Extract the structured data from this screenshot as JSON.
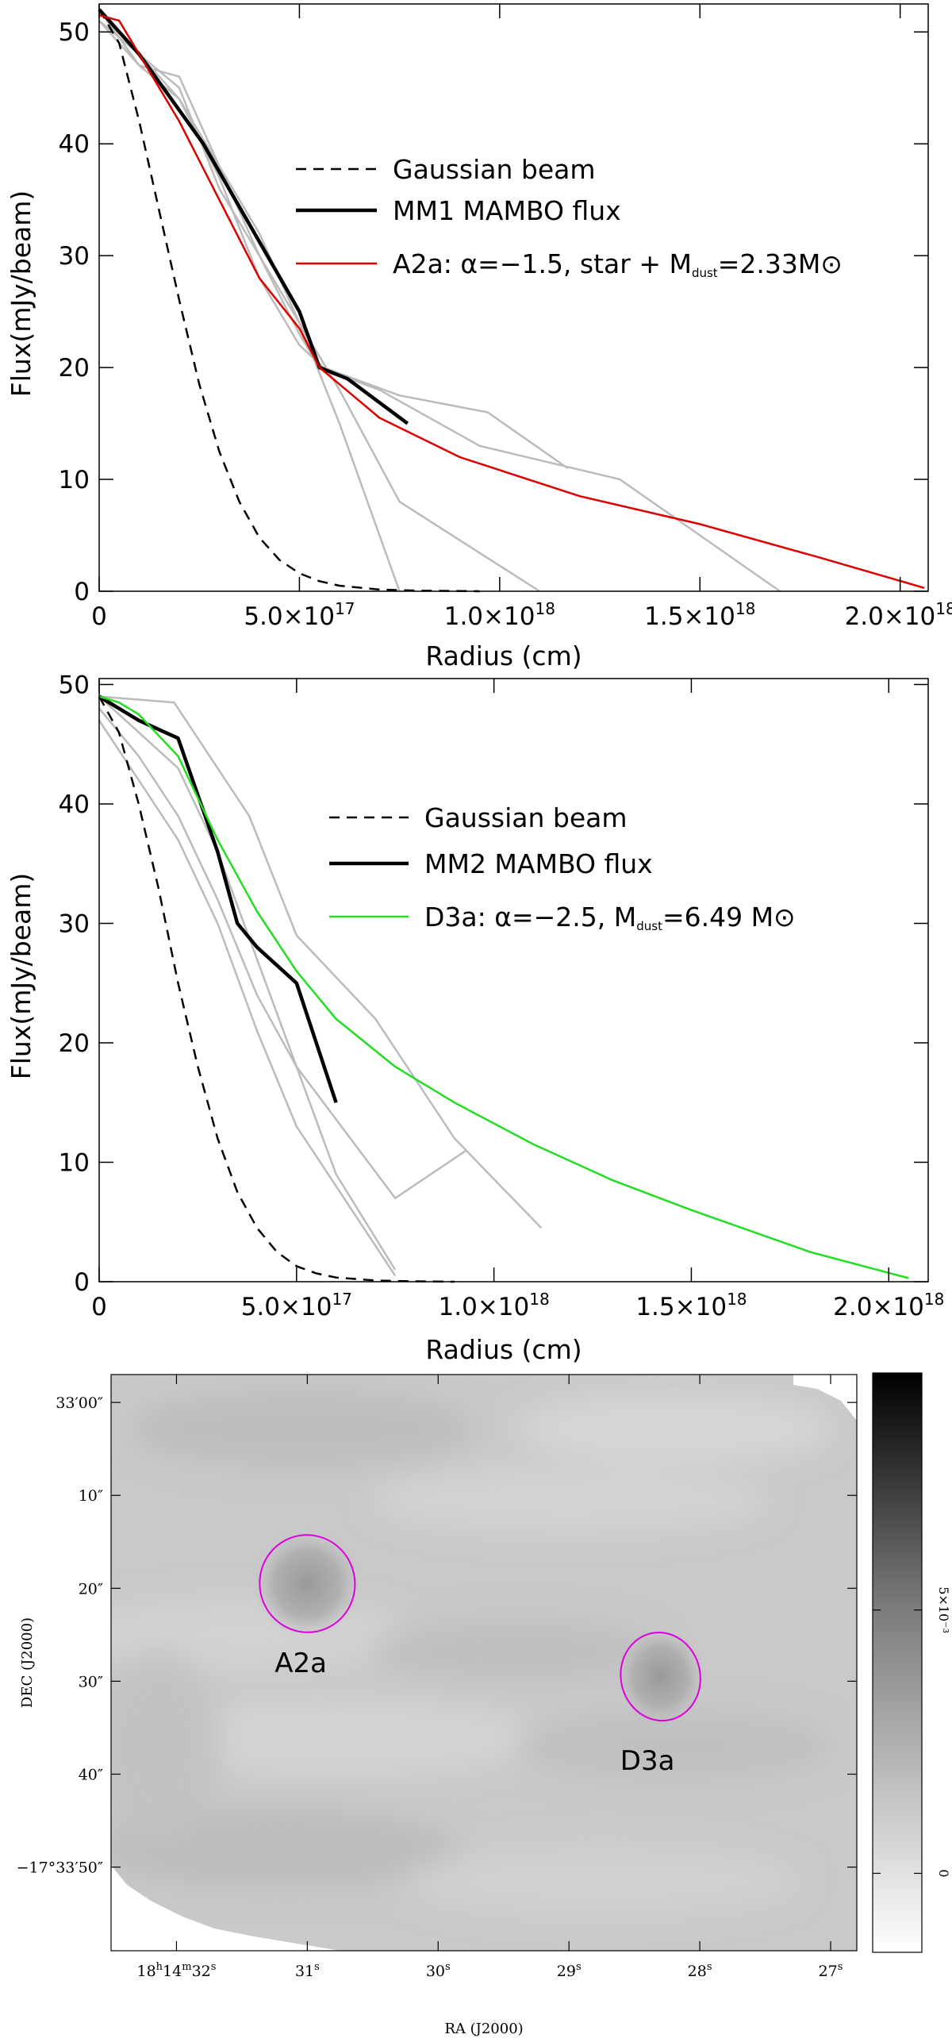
{
  "chart_data": [
    {
      "type": "line",
      "panel": "top",
      "xlabel": "Radius (cm)",
      "ylabel": "Flux(mJy/beam)",
      "xlim": [
        0,
        2.07e+18
      ],
      "ylim": [
        0,
        52.5
      ],
      "xticks": [
        {
          "value": 0,
          "base": "0",
          "exp": ""
        },
        {
          "value": 5e+17,
          "base": "5.0×10",
          "exp": "17"
        },
        {
          "value": 1e+18,
          "base": "1.0×10",
          "exp": "18"
        },
        {
          "value": 1.5e+18,
          "base": "1.5×10",
          "exp": "18"
        },
        {
          "value": 2e+18,
          "base": "2.0×10",
          "exp": "18"
        }
      ],
      "yticks": [
        0,
        10,
        20,
        30,
        40,
        50
      ],
      "legend": [
        {
          "key": "beam",
          "label": "Gaussian beam",
          "style": "dashed",
          "color": "#000000"
        },
        {
          "key": "obs",
          "label": "MM1 MAMBO flux",
          "style": "thick",
          "color": "#000000"
        },
        {
          "key": "model",
          "label": "A2a: α=−1.5, star + M",
          "sub": "dust",
          "tail": "=2.33M⊙",
          "style": "solid",
          "color": "#dd0000"
        }
      ],
      "series": [
        {
          "name": "Gaussian beam",
          "style": "dashed",
          "color": "#000000",
          "x": [
            0,
            5e+16,
            1e+17,
            1.5e+17,
            2e+17,
            2.5e+17,
            3e+17,
            3.5e+17,
            4e+17,
            4.5e+17,
            5e+17,
            5.5e+17,
            6e+17,
            7e+17,
            8e+17,
            9e+17,
            9.5e+17
          ],
          "y": [
            52,
            49,
            42,
            34,
            26,
            18.5,
            12.5,
            8,
            4.8,
            2.8,
            1.6,
            0.9,
            0.5,
            0.15,
            0.05,
            0.02,
            0
          ]
        },
        {
          "name": "MM1 MAMBO flux",
          "style": "thick",
          "color": "#000000",
          "x": [
            0,
            1e+17,
            1.8e+17,
            2.6e+17,
            3.4e+17,
            4.2e+17,
            5e+17,
            5.5e+17,
            6.2e+17,
            7.7e+17
          ],
          "y": [
            52,
            48,
            44,
            40,
            35,
            30,
            25,
            20,
            19,
            15
          ]
        },
        {
          "name": "A2a model",
          "style": "solid",
          "color": "#dd0000",
          "x": [
            0,
            5e+16,
            1e+17,
            2e+17,
            3e+17,
            4e+17,
            5e+17,
            5.5e+17,
            7e+17,
            9e+17,
            1.2e+18,
            1.5e+18,
            1.8e+18,
            2.06e+18
          ],
          "y": [
            51.5,
            51,
            48,
            42,
            35,
            28,
            23.5,
            20,
            15.5,
            12,
            8.5,
            6,
            3,
            0.3
          ]
        },
        {
          "name": "MAMBO cut 1",
          "style": "thin",
          "color": "#bbbbbb",
          "x": [
            0,
            1e+17,
            2e+17,
            3e+17,
            4e+17,
            5e+17,
            6e+17,
            7.5e+17,
            1.1e+18
          ],
          "y": [
            51,
            47,
            46,
            38,
            32,
            24,
            18,
            8,
            0
          ]
        },
        {
          "name": "MAMBO cut 2",
          "style": "thin",
          "color": "#bbbbbb",
          "x": [
            0,
            1e+17,
            2e+17,
            3e+17,
            5e+17,
            6e+17,
            7.5e+17
          ],
          "y": [
            52,
            48,
            45,
            36,
            24,
            15,
            0
          ]
        },
        {
          "name": "MAMBO cut 3",
          "style": "thin",
          "color": "#bbbbbb",
          "x": [
            0,
            1e+17,
            2e+17,
            3e+17,
            4e+17,
            5e+17,
            5.6e+17,
            7.5e+17,
            9.7e+17,
            1.17e+18
          ],
          "y": [
            52,
            47,
            44,
            37,
            28,
            22,
            20,
            17.5,
            16,
            11
          ]
        },
        {
          "name": "MAMBO cut 4",
          "style": "thin",
          "color": "#bbbbbb",
          "x": [
            0,
            1e+17,
            2e+17,
            3e+17,
            4e+17,
            5e+17,
            5.5e+17,
            7e+17,
            9.5e+17,
            1.3e+18,
            1.7e+18
          ],
          "y": [
            51,
            48,
            44,
            38,
            30,
            23,
            20,
            18,
            13,
            10,
            0
          ]
        }
      ]
    },
    {
      "type": "line",
      "panel": "middle",
      "xlabel": "Radius (cm)",
      "ylabel": "Flux(mJy/beam)",
      "xlim": [
        0,
        2.1e+18
      ],
      "ylim": [
        0,
        50.5
      ],
      "xticks": [
        {
          "value": 0,
          "base": "0",
          "exp": ""
        },
        {
          "value": 5e+17,
          "base": "5.0×10",
          "exp": "17"
        },
        {
          "value": 1e+18,
          "base": "1.0×10",
          "exp": "18"
        },
        {
          "value": 1.5e+18,
          "base": "1.5×10",
          "exp": "18"
        },
        {
          "value": 2e+18,
          "base": "2.0×10",
          "exp": "18"
        }
      ],
      "yticks": [
        0,
        10,
        20,
        30,
        40,
        50
      ],
      "legend": [
        {
          "key": "beam",
          "label": "Gaussian beam",
          "style": "dashed",
          "color": "#000000"
        },
        {
          "key": "obs",
          "label": "MM2 MAMBO flux",
          "style": "thick",
          "color": "#000000"
        },
        {
          "key": "model",
          "label": "D3a: α=−2.5, M",
          "sub": "dust",
          "tail": "=6.49 M⊙",
          "style": "solid",
          "color": "#22dd22"
        }
      ],
      "series": [
        {
          "name": "Gaussian beam",
          "style": "dashed",
          "color": "#000000",
          "x": [
            0,
            5e+16,
            1e+17,
            1.5e+17,
            2e+17,
            2.5e+17,
            3e+17,
            3.5e+17,
            4e+17,
            4.5e+17,
            5e+17,
            5.5e+17,
            6e+17,
            7e+17,
            8e+17,
            9e+17
          ],
          "y": [
            49,
            46,
            40,
            33,
            25,
            18,
            12,
            7.5,
            4.5,
            2.5,
            1.3,
            0.7,
            0.35,
            0.1,
            0.03,
            0
          ]
        },
        {
          "name": "MM2 MAMBO flux",
          "style": "thick",
          "color": "#000000",
          "x": [
            0,
            1e+17,
            2e+17,
            3e+17,
            3.5e+17,
            4e+17,
            5e+17,
            6e+17
          ],
          "y": [
            49,
            47,
            45.5,
            36,
            30,
            28,
            25,
            15
          ]
        },
        {
          "name": "D3a model",
          "style": "solid",
          "color": "#22dd22",
          "x": [
            0,
            5e+16,
            1e+17,
            2e+17,
            3e+17,
            4e+17,
            5e+17,
            6e+17,
            7.5e+17,
            9e+17,
            1.1e+18,
            1.3e+18,
            1.5e+18,
            1.8e+18,
            2.05e+18
          ],
          "y": [
            49,
            48.5,
            47.5,
            44,
            37,
            31,
            26,
            22,
            18,
            15,
            11.5,
            8.5,
            6,
            2.5,
            0.3
          ]
        },
        {
          "name": "MAMBO cut 1",
          "style": "thin",
          "color": "#bbbbbb",
          "x": [
            0,
            1e+17,
            2e+17,
            3e+17,
            4e+17,
            5e+17,
            6e+17,
            7.5e+17
          ],
          "y": [
            49,
            46,
            43,
            36,
            27,
            18,
            9,
            1
          ]
        },
        {
          "name": "MAMBO cut 2",
          "style": "thin",
          "color": "#bbbbbb",
          "x": [
            0,
            1e+17,
            2e+17,
            3e+17,
            4e+17,
            5e+17,
            7.5e+17,
            9.3e+17
          ],
          "y": [
            48,
            44,
            39,
            32,
            24,
            18,
            7,
            11
          ]
        },
        {
          "name": "MAMBO cut 3",
          "style": "thin",
          "color": "#bbbbbb",
          "x": [
            0,
            1.9e+17,
            3.8e+17,
            5e+17,
            7e+17,
            9e+17,
            1.12e+18
          ],
          "y": [
            49,
            48.5,
            39,
            29,
            22,
            12,
            4.5
          ]
        },
        {
          "name": "MAMBO cut 4",
          "style": "thin",
          "color": "#bbbbbb",
          "x": [
            0,
            1e+17,
            2e+17,
            3e+17,
            4e+17,
            5e+17,
            6e+17,
            7.5e+17
          ],
          "y": [
            47,
            42,
            37,
            30,
            21,
            13,
            8,
            0.5
          ]
        }
      ]
    },
    {
      "type": "heatmap",
      "panel": "bottom",
      "xlabel": "RA (J2000)",
      "ylabel": "DEC (J2000)",
      "xlim_s": [
        32.5,
        26.8
      ],
      "ylim_arcsec": [
        -3,
        59
      ],
      "xticks": [
        {
          "value": 32,
          "h": "18",
          "m": "14",
          "s": "32",
          "label": "18h14m32s"
        },
        {
          "value": 31,
          "s": "31",
          "label": "31s"
        },
        {
          "value": 30,
          "s": "30",
          "label": "30s"
        },
        {
          "value": 29,
          "s": "29",
          "label": "29s"
        },
        {
          "value": 28,
          "s": "28",
          "label": "28s"
        },
        {
          "value": 27,
          "s": "27",
          "label": "27s"
        }
      ],
      "yticks": [
        {
          "value": 0,
          "main": "33′00″"
        },
        {
          "value": 10,
          "main": "10″"
        },
        {
          "value": 20,
          "main": "20″"
        },
        {
          "value": 30,
          "main": "30″"
        },
        {
          "value": 40,
          "main": "40″"
        },
        {
          "value": 50,
          "main": "−17°33′50″"
        }
      ],
      "sources": [
        {
          "name": "A2a",
          "ra_s": 31.0,
          "dec_arcsec": 19.5,
          "label_ra_s": 31.05,
          "label_dec_arcsec": 28
        },
        {
          "name": "D3a",
          "ra_s": 28.3,
          "dec_arcsec": 29.5,
          "label_ra_s": 28.4,
          "label_dec_arcsec": 38.5
        }
      ],
      "contour_color": "#dd00dd",
      "colorbar": {
        "ticks": [
          {
            "value": 0,
            "label": "0"
          },
          {
            "value": 0.005,
            "label": "5×10⁻³"
          }
        ],
        "range": [
          -0.0015,
          0.0095
        ]
      }
    }
  ]
}
